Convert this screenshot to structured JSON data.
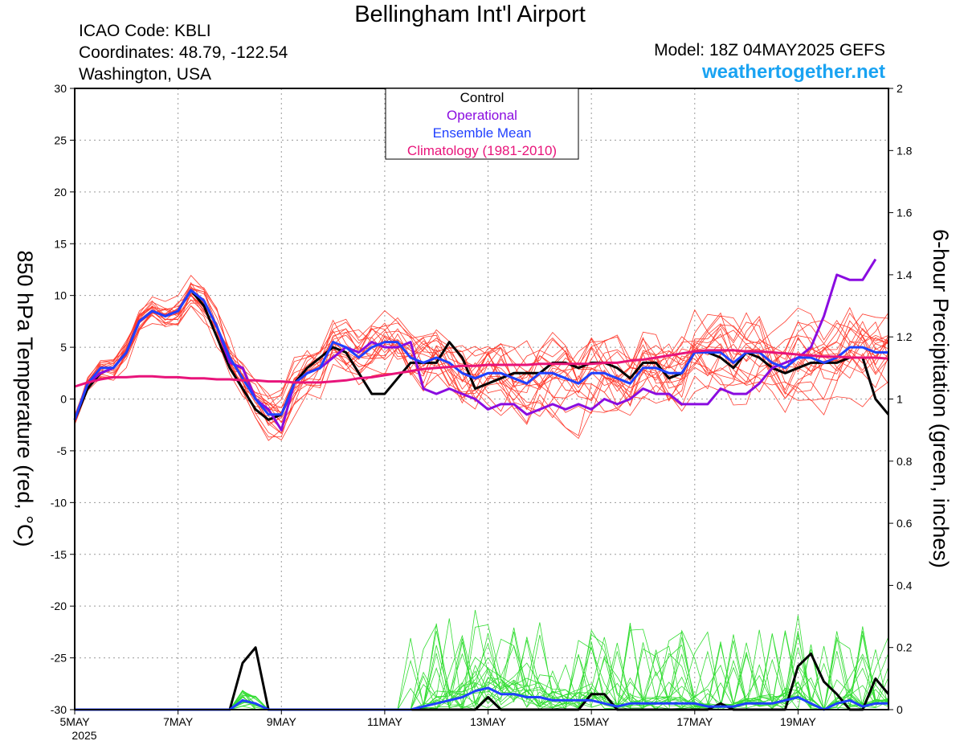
{
  "header": {
    "title": "Bellingham Int'l Airport",
    "icao": "ICAO Code: KBLI",
    "coordinates": "Coordinates: 48.79, -122.54",
    "region": "Washington, USA",
    "model": "Model: 18Z 04MAY2025 GEFS",
    "site": "weathertogether.net"
  },
  "chart_data": {
    "type": "line",
    "x_unit": "hours since 00Z 05MAY2025",
    "x_step_hours": 6,
    "xlim": [
      0,
      378
    ],
    "x_ticks": [
      {
        "label": "5MAY",
        "x": 0
      },
      {
        "label": "7MAY",
        "x": 48
      },
      {
        "label": "9MAY",
        "x": 96
      },
      {
        "label": "11MAY",
        "x": 144
      },
      {
        "label": "13MAY",
        "x": 192
      },
      {
        "label": "15MAY",
        "x": 240
      },
      {
        "label": "17MAY",
        "x": 288
      },
      {
        "label": "19MAY",
        "x": 336
      }
    ],
    "x_year_label": "2025",
    "ylabel_left": "850 hPa Temperature (red, °C)",
    "ylabel_right": "6-hour Precipitation (green, inches)",
    "ylim_left": [
      -30,
      30
    ],
    "ylim_right": [
      0,
      2
    ],
    "y_ticks_left": [
      "30",
      "25",
      "20",
      "15",
      "10",
      "5",
      "0",
      "-5",
      "-10",
      "-15",
      "-20",
      "-25",
      "-30"
    ],
    "y_ticks_right": [
      "2",
      "1.8",
      "1.6",
      "1.4",
      "1.2",
      "1",
      "0.8",
      "0.6",
      "0.4",
      "0.2",
      "0"
    ],
    "grid": true,
    "legend_position": "top-center",
    "legend": [
      {
        "name": "Control",
        "color": "#000000"
      },
      {
        "name": "Operational",
        "color": "#8a0ce0"
      },
      {
        "name": "Ensemble Mean",
        "color": "#2040ff"
      },
      {
        "name": "Climatology (1981-2010)",
        "color": "#e8147a"
      }
    ],
    "series": [
      {
        "name": "Control",
        "axis": "left",
        "color": "#000000",
        "width": 3,
        "values": [
          -2,
          1,
          2.5,
          3,
          4.5,
          7.5,
          8.5,
          8,
          8.5,
          10.5,
          9,
          6,
          3,
          1,
          -1,
          -2,
          -1.5,
          1.5,
          3,
          4,
          5,
          4.5,
          2.5,
          0.5,
          0.5,
          2,
          3.5,
          3.5,
          3.5,
          5.5,
          4,
          1,
          1.5,
          2,
          2.5,
          2.5,
          2.5,
          3.5,
          3.5,
          3,
          3.5,
          3.5,
          3,
          2,
          3.5,
          3.5,
          2,
          2.5,
          4.5,
          4.5,
          4,
          3,
          4.5,
          4,
          3,
          2.5,
          3,
          3.5,
          3.5,
          3.5,
          4,
          4,
          0,
          -1.5
        ]
      },
      {
        "name": "Operational",
        "axis": "left",
        "color": "#8a0ce0",
        "width": 3,
        "values": [
          -2,
          1.5,
          2.5,
          3,
          4.5,
          7.5,
          8.5,
          8,
          8.5,
          10.5,
          9.5,
          7,
          3.5,
          3,
          0,
          -1,
          -3,
          1.5,
          2.5,
          3,
          4,
          5,
          4.5,
          5.5,
          5,
          5,
          5.5,
          1,
          0.5,
          1,
          0.5,
          0,
          -1,
          -0.5,
          -0.5,
          -1.5,
          -1,
          -0.5,
          -1,
          -0.5,
          -1,
          0,
          -0.5,
          0,
          1,
          0.5,
          0.5,
          -0.5,
          -0.5,
          -0.5,
          1,
          0.5,
          0.5,
          1.5,
          3,
          3.5,
          4,
          5,
          8,
          12,
          11.5,
          11.5,
          13.5
        ]
      },
      {
        "name": "Ensemble Mean",
        "axis": "left",
        "color": "#2040ff",
        "width": 3,
        "values": [
          -2,
          1.5,
          3,
          3,
          4.5,
          7.5,
          8.5,
          8,
          8.5,
          10.5,
          9.5,
          7,
          4,
          2,
          0,
          -1.5,
          -1.5,
          1.5,
          2.5,
          3,
          5.5,
          5,
          4,
          5,
          5.5,
          5.5,
          4,
          3.5,
          4,
          3.5,
          2.5,
          2,
          2.5,
          2.5,
          2,
          1.5,
          2.5,
          2.5,
          2,
          1.5,
          2.5,
          2.5,
          2,
          1.5,
          3,
          3,
          2.5,
          2.5,
          4.5,
          4.5,
          4.5,
          3.5,
          4.5,
          4.5,
          3.5,
          3,
          4,
          4,
          3.5,
          4,
          5,
          5,
          4.5,
          4.5
        ]
      },
      {
        "name": "Climatology (1981-2010)",
        "axis": "left",
        "color": "#e8147a",
        "width": 3,
        "values": [
          1.2,
          1.6,
          1.9,
          2.1,
          2.1,
          2.2,
          2.2,
          2.1,
          2.1,
          2.0,
          2.0,
          1.9,
          1.9,
          1.8,
          1.8,
          1.7,
          1.7,
          1.6,
          1.6,
          1.6,
          1.7,
          1.8,
          2.0,
          2.1,
          2.3,
          2.5,
          2.7,
          2.9,
          3.0,
          3.1,
          3.2,
          3.2,
          3.3,
          3.3,
          3.3,
          3.3,
          3.4,
          3.4,
          3.4,
          3.4,
          3.4,
          3.5,
          3.5,
          3.7,
          3.8,
          4.0,
          4.2,
          4.4,
          4.6,
          4.7,
          4.7,
          4.7,
          4.6,
          4.6,
          4.5,
          4.4,
          4.3,
          4.2,
          4.1,
          4.1,
          4.0,
          4.0,
          4.0,
          3.9
        ]
      },
      {
        "name": "Control precipitation",
        "axis": "right",
        "color": "#000000",
        "width": 3,
        "values": [
          0,
          0,
          0,
          0,
          0,
          0,
          0,
          0,
          0,
          0,
          0,
          0,
          0,
          0.15,
          0.2,
          0,
          0,
          0,
          0,
          0,
          0,
          0,
          0,
          0,
          0,
          0,
          0,
          0,
          0,
          0,
          0,
          0,
          0.04,
          0,
          0,
          0,
          0,
          0,
          0,
          0,
          0.05,
          0.05,
          0,
          0,
          0,
          0,
          0,
          0,
          0,
          0,
          0.02,
          0,
          0,
          0,
          0,
          0,
          0.14,
          0.18,
          0.09,
          0.05,
          0,
          0,
          0.1,
          0.05
        ]
      },
      {
        "name": "Ensemble Mean precipitation",
        "axis": "right",
        "color": "#2040ff",
        "width": 3,
        "values": [
          0,
          0,
          0,
          0,
          0,
          0,
          0,
          0,
          0,
          0,
          0,
          0,
          0,
          0.03,
          0.02,
          0,
          0,
          0,
          0,
          0,
          0,
          0,
          0,
          0,
          0,
          0,
          0,
          0.01,
          0.02,
          0.03,
          0.04,
          0.06,
          0.07,
          0.05,
          0.05,
          0.04,
          0.04,
          0.03,
          0.03,
          0.03,
          0.03,
          0.02,
          0.01,
          0.02,
          0.02,
          0.02,
          0.02,
          0.02,
          0.02,
          0.01,
          0.01,
          0.01,
          0.02,
          0.02,
          0.02,
          0.03,
          0.04,
          0.02,
          0,
          0.02,
          0.03,
          0.01,
          0.02,
          0.02
        ]
      }
    ]
  }
}
